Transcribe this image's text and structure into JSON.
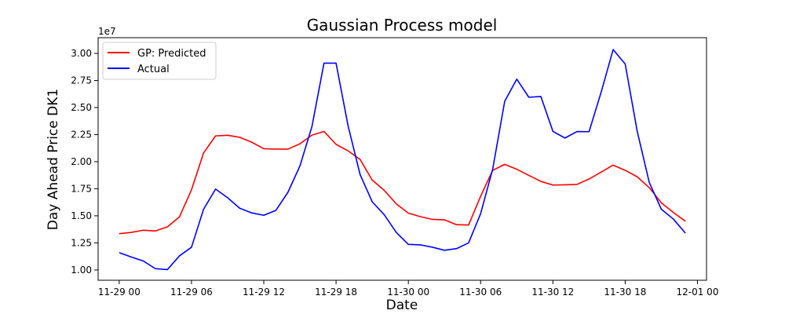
{
  "chart_data": {
    "type": "line",
    "title": "Gaussian Process model",
    "xlabel": "Date",
    "ylabel": "Day Ahead Price DK1",
    "y_scale_label": "1e7",
    "y_scale_factor": 10000000,
    "xlim": [
      -1.75,
      48.75
    ],
    "ylim": [
      0.905,
      3.145
    ],
    "x_ticks": [
      {
        "hours": 0,
        "label": "11-29 00"
      },
      {
        "hours": 6,
        "label": "11-29 06"
      },
      {
        "hours": 12,
        "label": "11-29 12"
      },
      {
        "hours": 18,
        "label": "11-29 18"
      },
      {
        "hours": 24,
        "label": "11-30 00"
      },
      {
        "hours": 30,
        "label": "11-30 06"
      },
      {
        "hours": 36,
        "label": "11-30 12"
      },
      {
        "hours": 42,
        "label": "11-30 18"
      },
      {
        "hours": 48,
        "label": "12-01 00"
      }
    ],
    "y_ticks": [
      {
        "value": 1.0,
        "label": "1.00"
      },
      {
        "value": 1.25,
        "label": "1.25"
      },
      {
        "value": 1.5,
        "label": "1.50"
      },
      {
        "value": 1.75,
        "label": "1.75"
      },
      {
        "value": 2.0,
        "label": "2.00"
      },
      {
        "value": 2.25,
        "label": "2.25"
      },
      {
        "value": 2.5,
        "label": "2.50"
      },
      {
        "value": 2.75,
        "label": "2.75"
      },
      {
        "value": 3.0,
        "label": "3.00"
      }
    ],
    "legend_position": "top-left",
    "grid": false,
    "x": [
      0,
      1,
      2,
      3,
      4,
      5,
      6,
      7,
      8,
      9,
      10,
      11,
      12,
      13,
      14,
      15,
      16,
      17,
      18,
      19,
      20,
      21,
      22,
      23,
      24,
      25,
      26,
      27,
      28,
      29,
      30,
      31,
      32,
      33,
      34,
      35,
      36,
      37,
      38,
      39,
      40,
      41,
      42,
      43,
      44,
      45,
      46,
      47
    ],
    "series": [
      {
        "name": "GP: Predicted",
        "color": "#ff0000",
        "values": [
          1.335,
          1.347,
          1.367,
          1.36,
          1.398,
          1.49,
          1.74,
          2.08,
          2.238,
          2.244,
          2.225,
          2.18,
          2.12,
          2.116,
          2.116,
          2.165,
          2.245,
          2.279,
          2.16,
          2.1,
          2.02,
          1.83,
          1.735,
          1.61,
          1.525,
          1.492,
          1.467,
          1.463,
          1.418,
          1.415,
          1.68,
          1.92,
          1.975,
          1.93,
          1.873,
          1.818,
          1.784,
          1.786,
          1.79,
          1.84,
          1.903,
          1.968,
          1.92,
          1.86,
          1.76,
          1.62,
          1.53,
          1.45
        ]
      },
      {
        "name": "Actual",
        "color": "#0000ff",
        "values": [
          1.16,
          1.12,
          1.083,
          1.012,
          1.003,
          1.13,
          1.21,
          1.56,
          1.747,
          1.667,
          1.57,
          1.527,
          1.505,
          1.55,
          1.716,
          1.96,
          2.325,
          2.91,
          2.91,
          2.33,
          1.88,
          1.63,
          1.51,
          1.347,
          1.236,
          1.232,
          1.21,
          1.182,
          1.197,
          1.25,
          1.52,
          1.93,
          2.558,
          2.762,
          2.595,
          2.602,
          2.28,
          2.218,
          2.278,
          2.277,
          2.64,
          3.035,
          2.902,
          2.28,
          1.808,
          1.561,
          1.47,
          1.34
        ]
      }
    ]
  }
}
